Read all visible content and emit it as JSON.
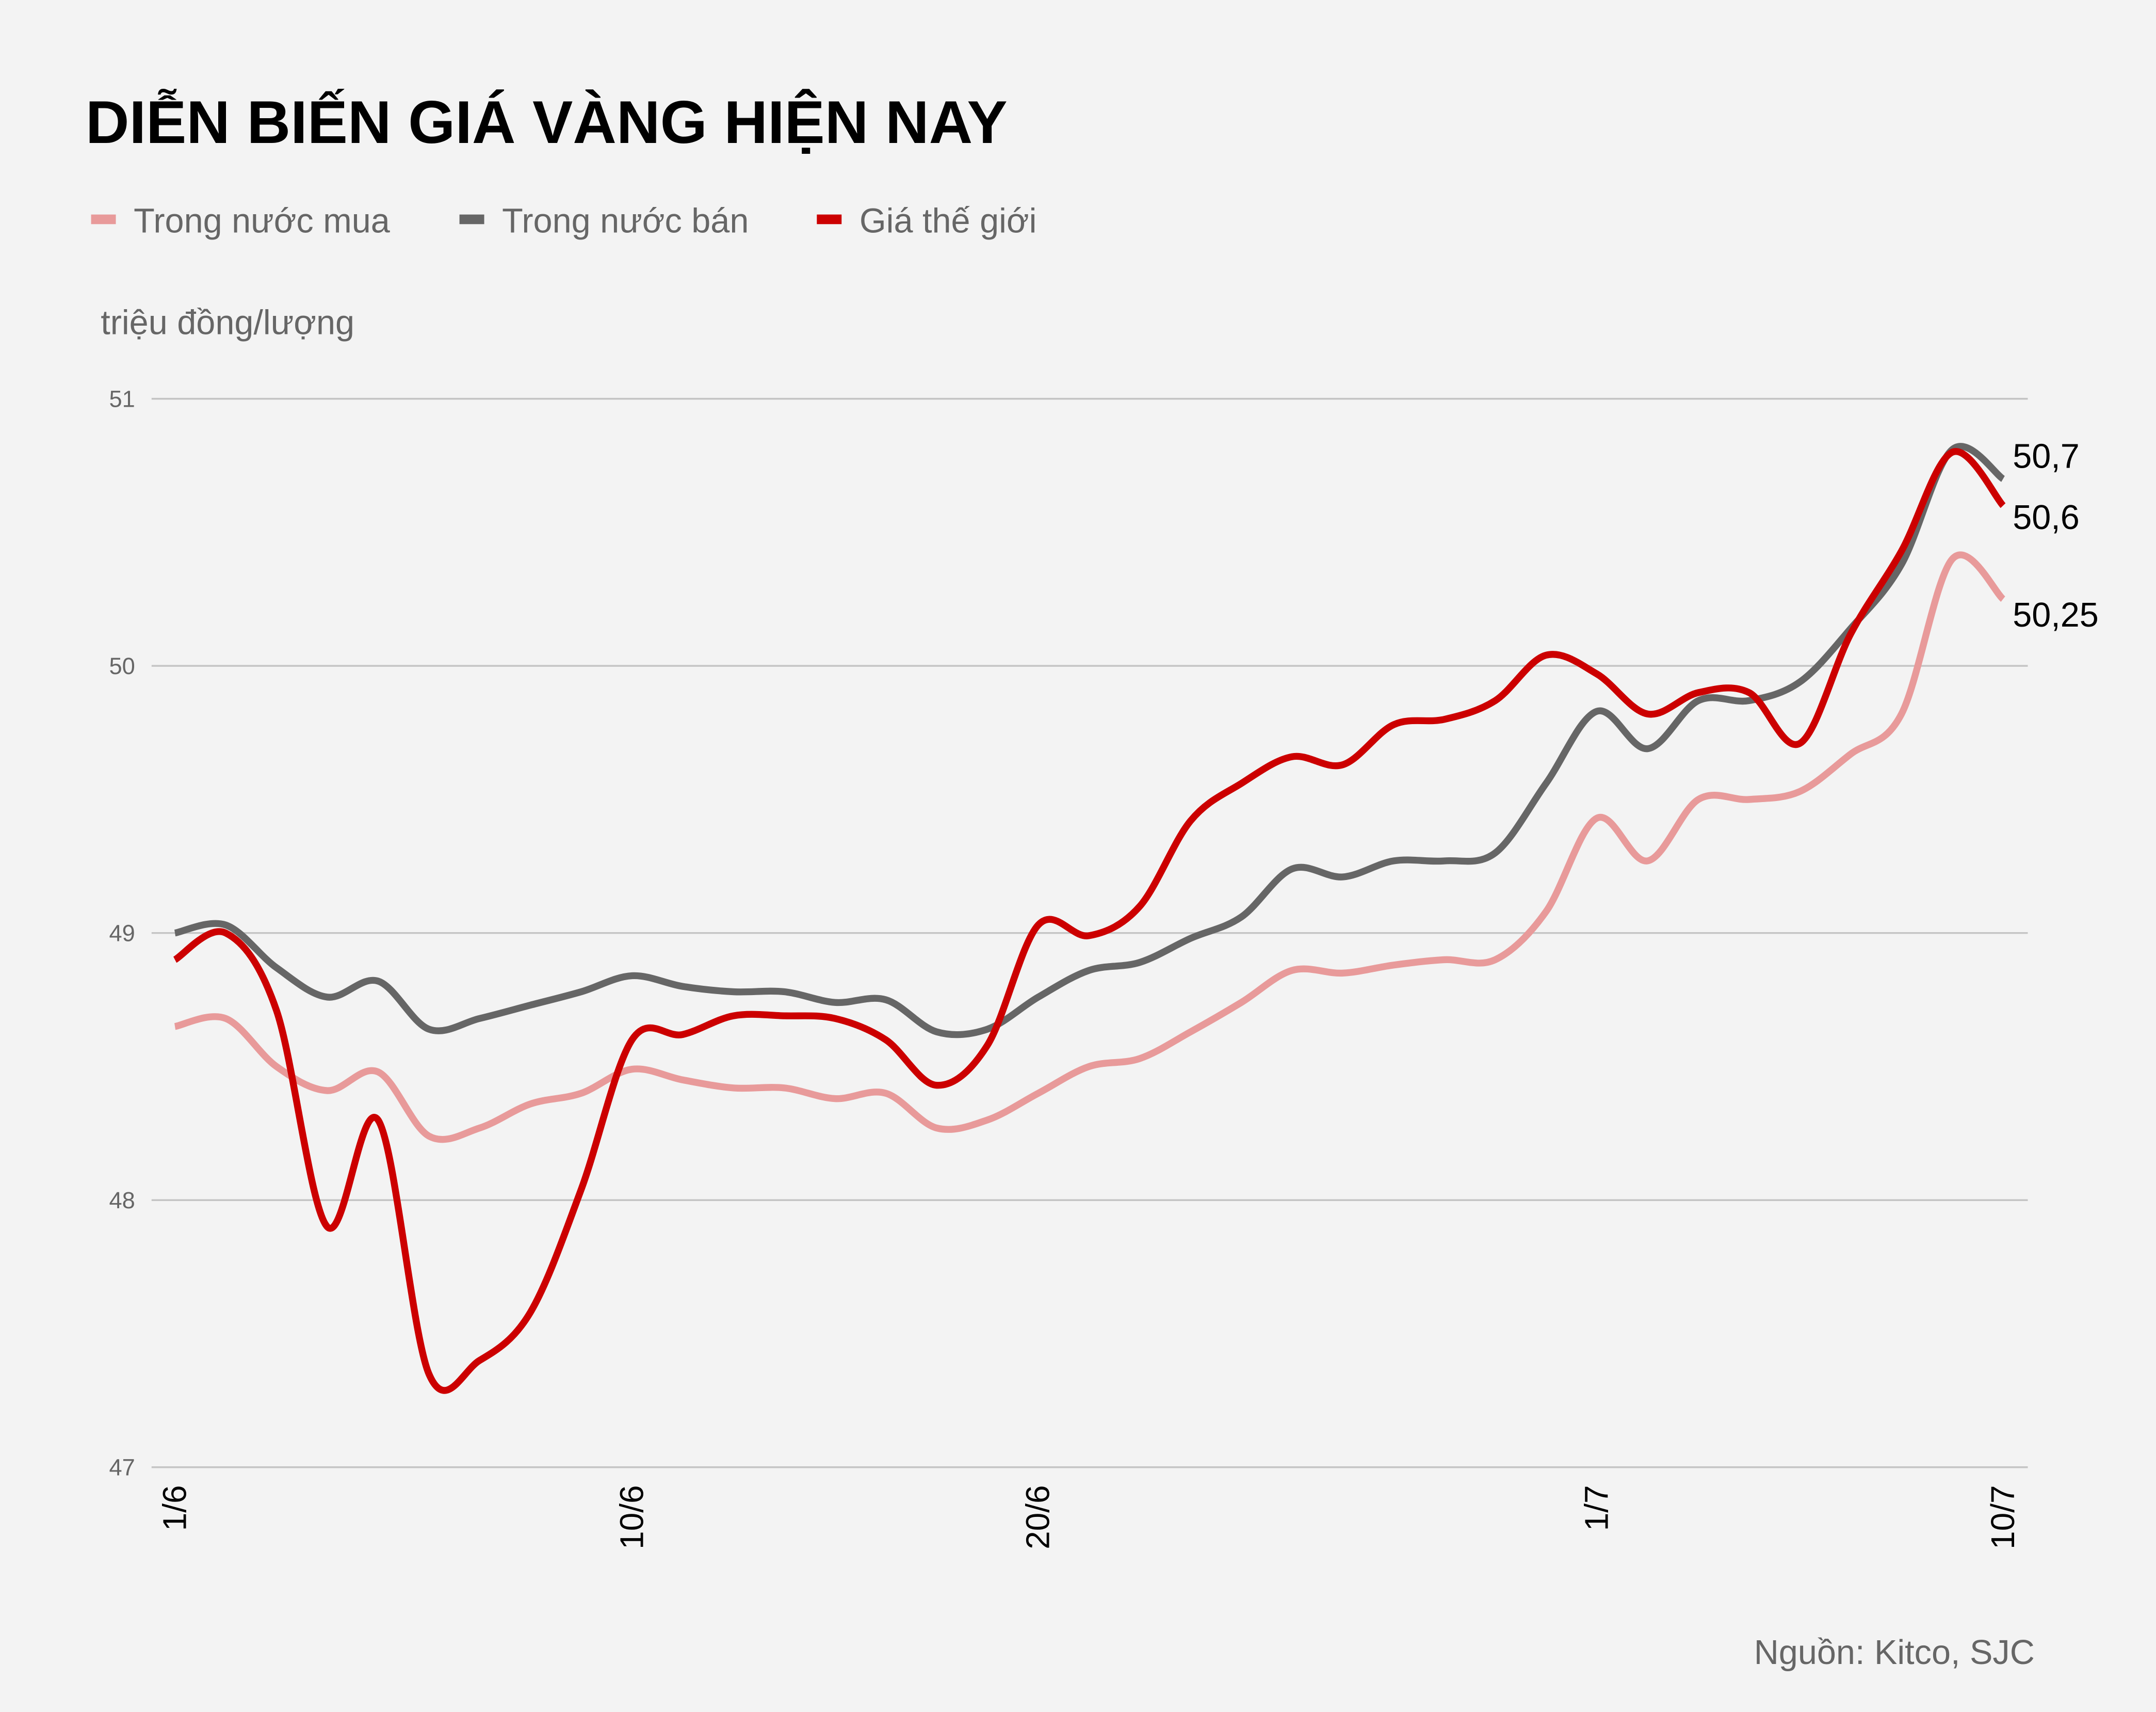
{
  "chart_data": {
    "type": "line",
    "title": "DIỄN BIẾN GIÁ VÀNG HIỆN NAY",
    "ylabel": "triệu đồng/lượng",
    "source": "Nguồn: Kitco, SJC",
    "ylim": [
      47,
      51
    ],
    "yticks": [
      "47",
      "48",
      "49",
      "50",
      "51"
    ],
    "grid": "horizontal",
    "legend_position": "top-left",
    "xticks": [
      {
        "label": "1/6",
        "index": 0
      },
      {
        "label": "10/6",
        "index": 9
      },
      {
        "label": "20/6",
        "index": 17
      },
      {
        "label": "1/7",
        "index": 28
      },
      {
        "label": "10/7",
        "index": 36
      }
    ],
    "series": [
      {
        "name": "Trong nước mua",
        "color": "#e89a9a",
        "end_label": "50,25",
        "values": [
          48.65,
          48.68,
          48.5,
          48.41,
          48.48,
          48.24,
          48.27,
          48.36,
          48.4,
          48.49,
          48.45,
          48.42,
          48.42,
          48.38,
          48.4,
          48.27,
          48.3,
          48.4,
          48.5,
          48.53,
          48.63,
          48.74,
          48.86,
          48.85,
          48.88,
          48.9,
          48.9,
          49.08,
          49.43,
          49.27,
          49.5,
          49.5,
          49.53,
          49.67,
          49.82,
          50.4,
          50.25
        ]
      },
      {
        "name": "Trong nước bán",
        "color": "#666666",
        "end_label": "50,7",
        "values": [
          49.0,
          49.03,
          48.87,
          48.76,
          48.82,
          48.64,
          48.68,
          48.73,
          48.78,
          48.84,
          48.8,
          48.78,
          48.78,
          48.74,
          48.75,
          48.63,
          48.64,
          48.76,
          48.86,
          48.89,
          48.98,
          49.06,
          49.24,
          49.21,
          49.27,
          49.27,
          49.3,
          49.56,
          49.83,
          49.69,
          49.87,
          49.87,
          49.94,
          50.14,
          50.38,
          50.81,
          50.7
        ]
      },
      {
        "name": "Giá thế giới",
        "color": "#cc0000",
        "end_label": "50,6",
        "values": [
          48.9,
          49.0,
          48.71,
          47.9,
          48.3,
          47.35,
          47.4,
          47.58,
          48.04,
          48.6,
          48.62,
          48.69,
          48.69,
          48.68,
          48.6,
          48.43,
          48.58,
          49.03,
          48.99,
          49.1,
          49.42,
          49.56,
          49.66,
          49.63,
          49.78,
          49.8,
          49.87,
          50.04,
          49.97,
          49.82,
          49.9,
          49.9,
          49.71,
          50.12,
          50.43,
          50.8,
          50.6
        ]
      }
    ]
  }
}
